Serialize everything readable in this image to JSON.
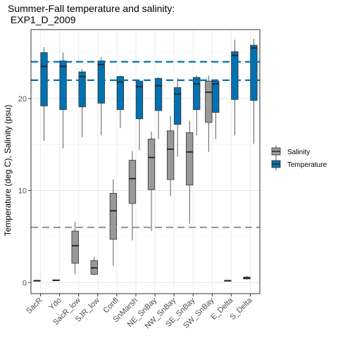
{
  "chart_data": {
    "type": "boxplot",
    "title": [
      "Summer-Fall temperature and salinity:",
      " EXP1_D_2009"
    ],
    "xlabel": "",
    "ylabel": "Temperature (deg C), Salinity (psu)",
    "ylim": [
      -1.2,
      27.5
    ],
    "yticks": [
      0,
      10,
      20
    ],
    "grid": true,
    "legend_position": "right",
    "categories": [
      "SacR",
      "Ydo",
      "SacR_low",
      "SJR_low",
      "Confl",
      "SnMarsh",
      "NE_SnBay",
      "NW_SnBay",
      "SE_SnBay",
      "SW_SnBay",
      "E_Delta",
      "S_Delta"
    ],
    "series": [
      {
        "name": "Salinity",
        "color": "#999999",
        "boxes": [
          {
            "category": "SacR",
            "min": 0.15,
            "q1": 0.15,
            "median": 0.2,
            "q3": 0.25,
            "max": 0.25
          },
          {
            "category": "Ydo",
            "min": 0.2,
            "q1": 0.2,
            "median": 0.25,
            "q3": 0.3,
            "max": 0.3
          },
          {
            "category": "SacR_low",
            "min": 0.9,
            "q1": 2.1,
            "median": 4.0,
            "q3": 5.6,
            "max": 6.6
          },
          {
            "category": "SJR_low",
            "min": 0.8,
            "q1": 0.9,
            "median": 1.6,
            "q3": 2.4,
            "max": 2.8
          },
          {
            "category": "Confl",
            "min": 1.8,
            "q1": 4.7,
            "median": 7.8,
            "q3": 9.7,
            "max": 11.2
          },
          {
            "category": "SnMarsh",
            "min": 4.6,
            "q1": 8.6,
            "median": 11.3,
            "q3": 13.3,
            "max": 14.3
          },
          {
            "category": "NE_SnBay",
            "min": 5.6,
            "q1": 10.1,
            "median": 13.6,
            "q3": 15.6,
            "max": 16.4
          },
          {
            "category": "NW_SnBay",
            "min": 9.4,
            "q1": 11.2,
            "median": 14.5,
            "q3": 16.5,
            "max": 18.1
          },
          {
            "category": "SE_SnBay",
            "min": 6.4,
            "q1": 10.6,
            "median": 14.2,
            "q3": 16.3,
            "max": 17.6
          },
          {
            "category": "SW_SnBay",
            "min": 14.2,
            "q1": 17.4,
            "median": 20.7,
            "q3": 21.9,
            "max": 22.5
          },
          {
            "category": "E_Delta",
            "min": 0.15,
            "q1": 0.15,
            "median": 0.2,
            "q3": 0.25,
            "max": 0.25
          },
          {
            "category": "S_Delta",
            "min": 0.35,
            "q1": 0.4,
            "median": 0.5,
            "q3": 0.6,
            "max": 0.7
          }
        ]
      },
      {
        "name": "Temperature",
        "color": "#0072b2",
        "boxes": [
          {
            "category": "SacR",
            "min": 15.4,
            "q1": 19.2,
            "median": 23.5,
            "q3": 25.0,
            "max": 25.6
          },
          {
            "category": "Ydo",
            "min": 14.6,
            "q1": 18.8,
            "median": 23.5,
            "q3": 24.1,
            "max": 25.0
          },
          {
            "category": "SacR_low",
            "min": 15.8,
            "q1": 19.1,
            "median": 22.4,
            "q3": 22.9,
            "max": 23.2
          },
          {
            "category": "SJR_low",
            "min": 16.0,
            "q1": 19.5,
            "median": 23.7,
            "q3": 24.1,
            "max": 24.5
          },
          {
            "category": "Confl",
            "min": 16.8,
            "q1": 18.8,
            "median": 21.8,
            "q3": 22.4,
            "max": 22.5
          },
          {
            "category": "SnMarsh",
            "min": 14.4,
            "q1": 17.8,
            "median": 21.3,
            "q3": 21.9,
            "max": 22.0
          },
          {
            "category": "NE_SnBay",
            "min": 15.6,
            "q1": 18.7,
            "median": 21.4,
            "q3": 22.2,
            "max": 22.3
          },
          {
            "category": "NW_SnBay",
            "min": 13.7,
            "q1": 17.2,
            "median": 20.5,
            "q3": 21.2,
            "max": 22.2
          },
          {
            "category": "SE_SnBay",
            "min": 16.0,
            "q1": 18.8,
            "median": 21.6,
            "q3": 22.3,
            "max": 22.5
          },
          {
            "category": "SW_SnBay",
            "min": 15.6,
            "q1": 18.5,
            "median": 21.6,
            "q3": 21.9,
            "max": 22.1
          },
          {
            "category": "E_Delta",
            "min": 16.0,
            "q1": 19.9,
            "median": 24.7,
            "q3": 25.1,
            "max": 26.4
          },
          {
            "category": "S_Delta",
            "min": 15.1,
            "q1": 19.8,
            "median": 25.5,
            "q3": 25.8,
            "max": 26.5
          }
        ]
      }
    ],
    "reference_lines": [
      {
        "y": 24.0,
        "color": "#0072b2",
        "style": "dashed"
      },
      {
        "y": 22.0,
        "color": "#0072b2",
        "style": "dashed"
      },
      {
        "y": 6.0,
        "color": "#999999",
        "style": "dashed"
      }
    ]
  }
}
